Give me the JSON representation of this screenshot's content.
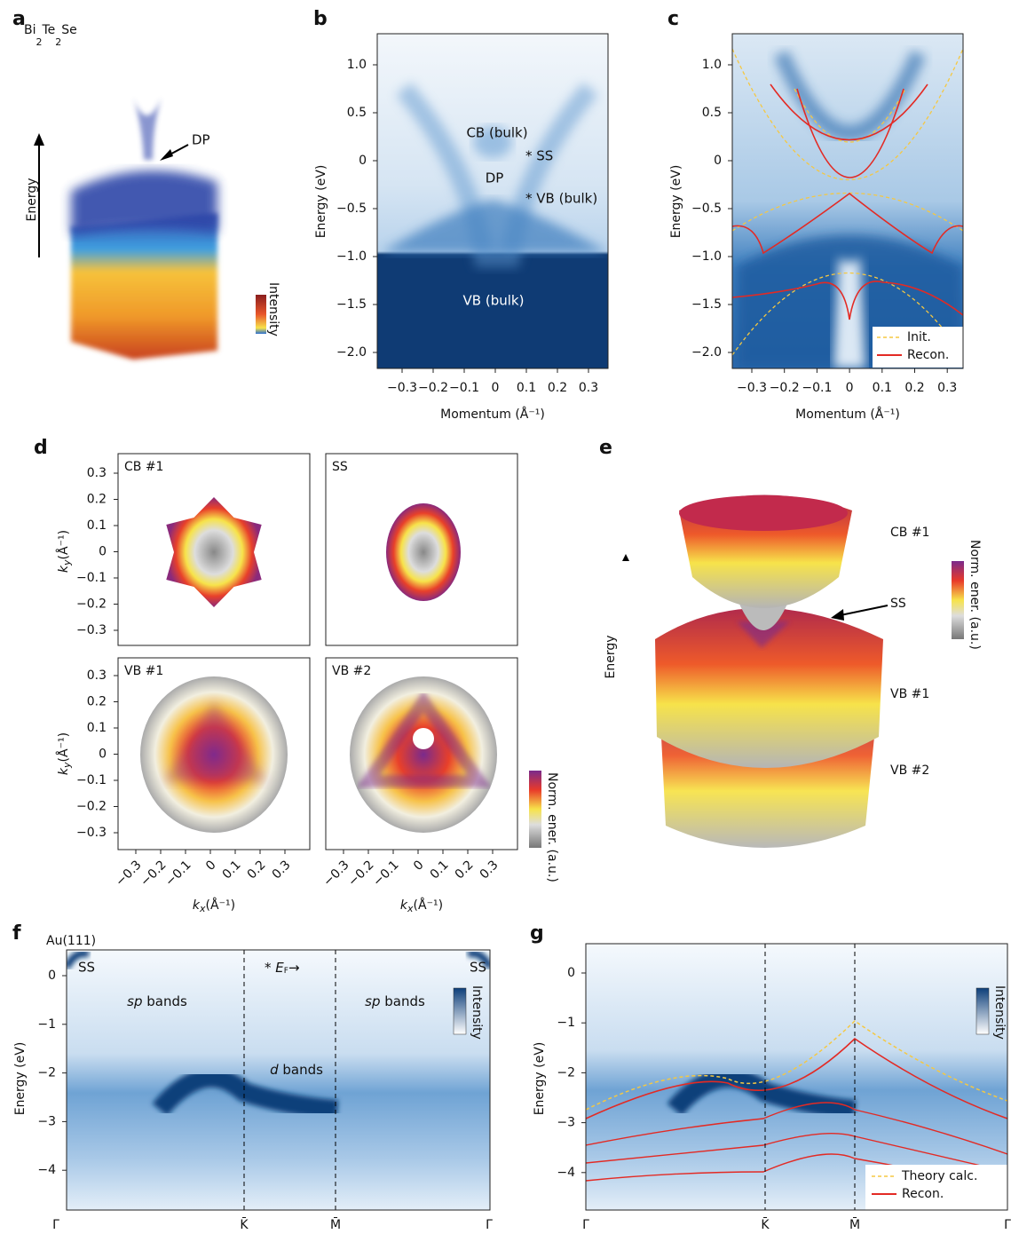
{
  "figure": {
    "a": {
      "label": "a",
      "formula": [
        "Bi",
        "2",
        "Te",
        "2",
        "Se"
      ],
      "annotation": "DP",
      "axis": "Energy",
      "colorbar": "Intensity"
    },
    "b": {
      "label": "b",
      "ylabel": "Energy (eV)",
      "yticks": [
        "1.0",
        "0.5",
        "0",
        "−0.5",
        "−1.0",
        "−1.5",
        "−2.0"
      ],
      "xticks": [
        "−0.3",
        "−0.2",
        "−0.1",
        "0",
        "0.1",
        "0.2",
        "0.3"
      ],
      "xlabel": "Momentum (Å⁻¹)",
      "annotations": [
        "CB (bulk)",
        "* SS",
        "DP",
        "* VB (bulk)",
        "VB (bulk)"
      ]
    },
    "c": {
      "label": "c",
      "ylabel": "Energy (eV)",
      "yticks": [
        "1.0",
        "0.5",
        "0",
        "−0.5",
        "−1.0",
        "−1.5",
        "−2.0"
      ],
      "xticks": [
        "−0.3",
        "−0.2",
        "−0.1",
        "0",
        "0.1",
        "0.2",
        "0.3"
      ],
      "xlabel": "Momentum (Å⁻¹)",
      "legend": [
        "Init.",
        "Recon."
      ]
    },
    "d": {
      "label": "d",
      "maps": [
        "CB #1",
        "SS",
        "VB #1",
        "VB #2"
      ],
      "yticks": [
        "0.3",
        "0.2",
        "0.1",
        "0",
        "−0.1",
        "−0.2",
        "−0.3"
      ],
      "xticks": [
        "−0.3",
        "−0.2",
        "−0.1",
        "0",
        "0.1",
        "0.2",
        "0.3"
      ],
      "ylabel": {
        "symbol": "k",
        "sub": "y",
        "unit": "(Å⁻¹)"
      },
      "xlabel": {
        "symbol": "k",
        "sub": "x",
        "unit": "(Å⁻¹)"
      },
      "colorbar": "Norm. ener. (a.u.)"
    },
    "e": {
      "label": "e",
      "surfaces": [
        "CB #1",
        "SS",
        "VB #1",
        "VB #2"
      ],
      "axis": "Energy",
      "colorbar": "Norm. ener. (a.u.)"
    },
    "f": {
      "label": "f",
      "material": "Au(111)",
      "ylabel": "Energy (eV)",
      "yticks": [
        "0",
        "−1",
        "−2",
        "−3",
        "−4"
      ],
      "xticks": [
        "Γ̄",
        "K̄",
        "M̄",
        "Γ̄"
      ],
      "ss": [
        "SS",
        "SS"
      ],
      "sp_bands": [
        "sp",
        " bands"
      ],
      "d_bands": [
        "d",
        " bands"
      ],
      "fermi": [
        "* ",
        "E",
        "F",
        "→"
      ],
      "colorbar": "Intensity"
    },
    "g": {
      "label": "g",
      "ylabel": "Energy (eV)",
      "yticks": [
        "0",
        "−1",
        "−2",
        "−3",
        "−4"
      ],
      "xticks": [
        "Γ̄",
        "K̄",
        "M̄",
        "Γ̄"
      ],
      "legend": [
        "Theory calc.",
        "Recon."
      ],
      "colorbar": "Intensity"
    }
  }
}
